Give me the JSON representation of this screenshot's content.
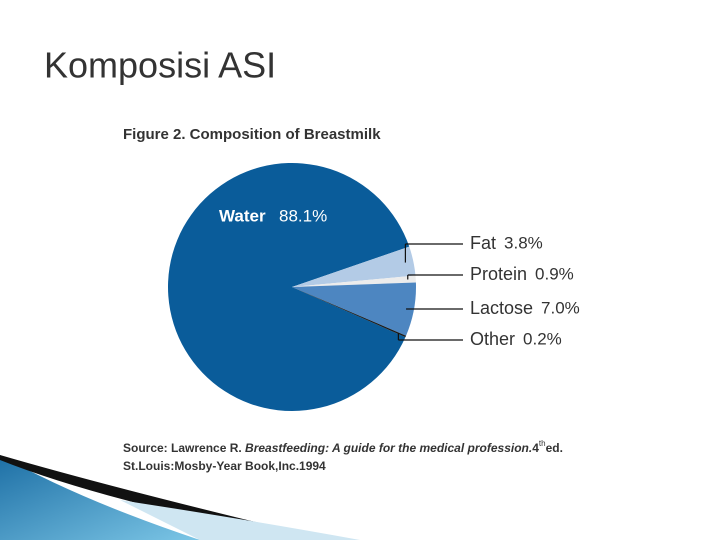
{
  "slide_title": "Komposisi ASI",
  "chart_data": {
    "type": "pie",
    "title": "Figure 2. Composition of Breastmilk",
    "categories": [
      "Water",
      "Fat",
      "Protein",
      "Lactose",
      "Other"
    ],
    "values": [
      88.1,
      3.8,
      0.9,
      7.0,
      0.2
    ],
    "value_labels": [
      "88.1%",
      "3.8%",
      "0.9%",
      "7.0%",
      "0.2%"
    ],
    "colors": [
      "#0a5c9a",
      "#b3cbe6",
      "#ececec",
      "#4d86c1",
      "#1a1a1a"
    ],
    "source": {
      "prefix": "Source: Lawrence R. ",
      "book": "Breastfeeding: A guide for the medical profession.",
      "edition": "4",
      "edition_suffix": "th",
      "ed": "ed.",
      "line2": "St.Louis:Mosby-Year Book,Inc.1994"
    }
  }
}
